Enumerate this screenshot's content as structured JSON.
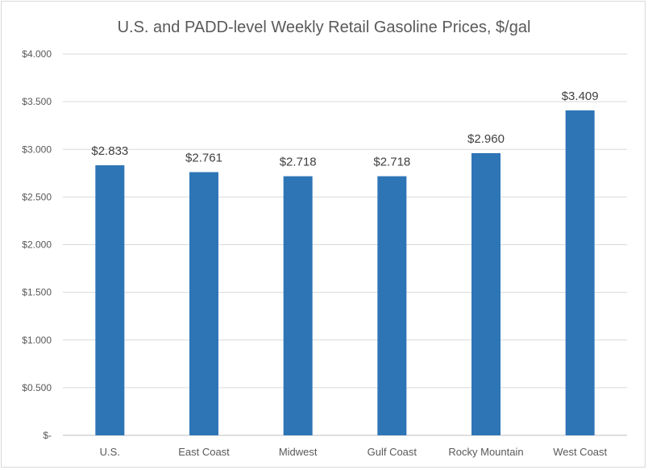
{
  "chart_data": {
    "type": "bar",
    "title": "U.S. and PADD-level Weekly Retail Gasoline Prices, $/gal",
    "categories": [
      "U.S.",
      "East Coast",
      "Midwest",
      "Gulf Coast",
      "Rocky Mountain",
      "West Coast"
    ],
    "values": [
      2.833,
      2.761,
      2.718,
      2.718,
      2.96,
      3.409
    ],
    "data_labels": [
      "$2.833",
      "$2.761",
      "$2.718",
      "$2.718",
      "$2.960",
      "$3.409"
    ],
    "ylim": [
      0,
      4
    ],
    "yticks": [
      0,
      0.5,
      1,
      1.5,
      2,
      2.5,
      3,
      3.5,
      4
    ],
    "ytick_labels": [
      "$-",
      "$0.500",
      "$1.000",
      "$1.500",
      "$2.000",
      "$2.500",
      "$3.000",
      "$3.500",
      "$4.000"
    ],
    "grid": true,
    "legend": "none",
    "bar_color": "#2e75b6"
  }
}
